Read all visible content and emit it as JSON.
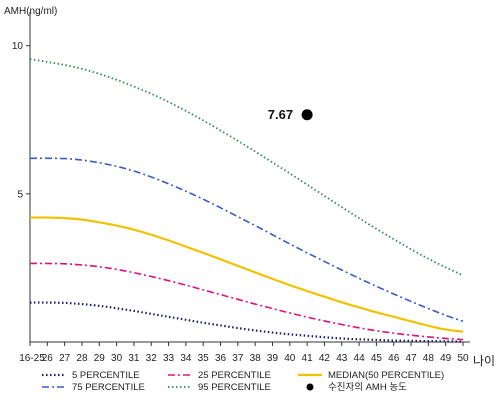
{
  "chart_data": {
    "type": "line",
    "title": "",
    "ylabel": "AMH(ng/ml)",
    "xlabel": "나이",
    "ylim": [
      0,
      10.8
    ],
    "yticks": [
      {
        "value": 5,
        "label": "5"
      },
      {
        "value": 10,
        "label": "10"
      }
    ],
    "categories": [
      "16-25",
      "26",
      "27",
      "28",
      "29",
      "30",
      "31",
      "32",
      "33",
      "34",
      "35",
      "36",
      "37",
      "38",
      "39",
      "40",
      "41",
      "42",
      "43",
      "44",
      "45",
      "46",
      "47",
      "48",
      "49",
      "50"
    ],
    "series": [
      {
        "name": "5 PERCENTILE",
        "color": "#1a1a6e",
        "dash": "1.5,2.5",
        "width": 2.2,
        "values": [
          1.33,
          1.33,
          1.32,
          1.28,
          1.22,
          1.14,
          1.05,
          0.95,
          0.85,
          0.75,
          0.65,
          0.56,
          0.47,
          0.39,
          0.32,
          0.26,
          0.21,
          0.16,
          0.12,
          0.09,
          0.07,
          0.05,
          0.04,
          0.03,
          0.02,
          0.01
        ]
      },
      {
        "name": "25 PERCENTILE",
        "color": "#e0107a",
        "dash": "7,3,2,3",
        "width": 1.6,
        "values": [
          2.65,
          2.65,
          2.64,
          2.6,
          2.54,
          2.45,
          2.34,
          2.21,
          2.07,
          1.92,
          1.76,
          1.6,
          1.44,
          1.28,
          1.13,
          0.98,
          0.84,
          0.71,
          0.59,
          0.48,
          0.38,
          0.3,
          0.23,
          0.17,
          0.12,
          0.08
        ]
      },
      {
        "name": "MEDIAN(50 PERCENTILE)",
        "color": "#f2c200",
        "dash": "",
        "width": 2.2,
        "values": [
          4.2,
          4.2,
          4.18,
          4.13,
          4.04,
          3.93,
          3.79,
          3.62,
          3.43,
          3.22,
          3.01,
          2.79,
          2.57,
          2.35,
          2.13,
          1.92,
          1.72,
          1.53,
          1.34,
          1.17,
          1.0,
          0.85,
          0.7,
          0.55,
          0.42,
          0.35
        ]
      },
      {
        "name": "75 PERCENTILE",
        "color": "#3a5bc7",
        "dash": "7,3,2,3",
        "width": 1.6,
        "values": [
          6.2,
          6.2,
          6.19,
          6.14,
          6.05,
          5.93,
          5.77,
          5.57,
          5.34,
          5.09,
          4.82,
          4.53,
          4.23,
          3.93,
          3.62,
          3.31,
          3.01,
          2.72,
          2.43,
          2.15,
          1.88,
          1.62,
          1.37,
          1.13,
          0.9,
          0.7
        ]
      },
      {
        "name": "95 PERCENTILE",
        "color": "#2e8b57",
        "dash": "1.5,2.5",
        "width": 1.8,
        "values": [
          9.55,
          9.45,
          9.35,
          9.22,
          9.05,
          8.85,
          8.62,
          8.38,
          8.1,
          7.8,
          7.48,
          7.14,
          6.79,
          6.43,
          6.06,
          5.69,
          5.31,
          4.93,
          4.55,
          4.18,
          3.82,
          3.47,
          3.13,
          2.81,
          2.52,
          2.25
        ]
      }
    ],
    "points": [
      {
        "name": "수진자의 AMH 농도",
        "x": "41",
        "y": 7.67,
        "label": "7.67",
        "color": "#000000"
      }
    ],
    "legend": {
      "position": "bottom",
      "items": [
        {
          "label": "5 PERCENTILE",
          "series": 0
        },
        {
          "label": "25 PERCENTILE",
          "series": 1
        },
        {
          "label": "MEDIAN(50 PERCENTILE)",
          "series": 2
        },
        {
          "label": "75 PERCENTILE",
          "series": 3
        },
        {
          "label": "95 PERCENTILE",
          "series": 4
        },
        {
          "label": "수진자의 AMH 농도",
          "point": 0
        }
      ]
    }
  }
}
